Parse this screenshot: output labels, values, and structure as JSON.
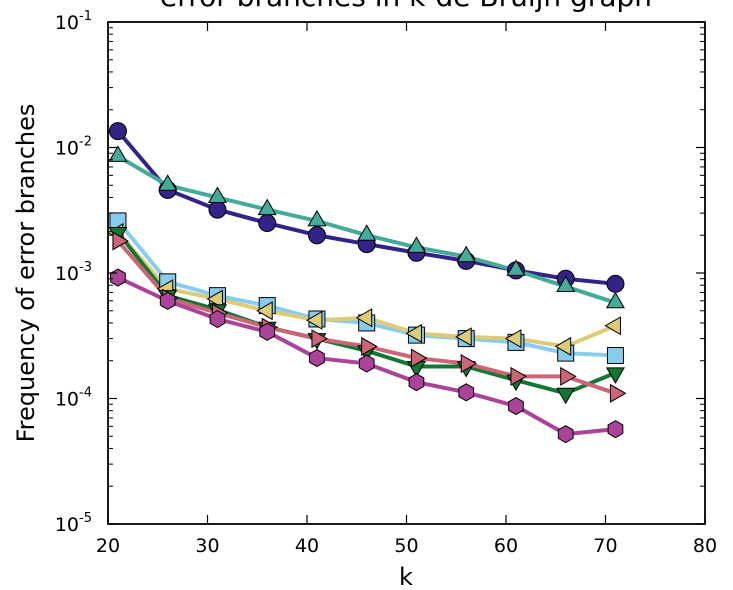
{
  "chart_data": {
    "type": "line",
    "title": "error branches in k-de Bruijn graph",
    "xlabel": "k",
    "ylabel": "Frequency of error branches",
    "xlim": [
      20,
      80
    ],
    "ylim": [
      1e-05,
      0.1
    ],
    "yscale": "log",
    "xticks": [
      "20",
      "30",
      "40",
      "50",
      "60",
      "70",
      "80"
    ],
    "yticks": [
      {
        "base": "10",
        "exp": "-5"
      },
      {
        "base": "10",
        "exp": "-4"
      },
      {
        "base": "10",
        "exp": "-3"
      },
      {
        "base": "10",
        "exp": "-2"
      },
      {
        "base": "10",
        "exp": "-1"
      }
    ],
    "grid": false,
    "legend": "none",
    "series": [
      {
        "color": "#332288",
        "marker": "circle",
        "x": [
          21,
          26,
          31,
          36,
          41,
          46,
          51,
          56,
          61,
          66,
          71
        ],
        "y": [
          0.0135,
          0.0046,
          0.0032,
          0.0025,
          0.002,
          0.0017,
          0.00145,
          0.00125,
          0.00105,
          0.0009,
          0.00082
        ]
      },
      {
        "color": "#44AA99",
        "marker": "triangle-up",
        "x": [
          21,
          26,
          31,
          36,
          41,
          46,
          51,
          56,
          61,
          66,
          71
        ],
        "y": [
          0.0085,
          0.005,
          0.004,
          0.0032,
          0.0026,
          0.002,
          0.0016,
          0.00135,
          0.00105,
          0.00078,
          0.00058
        ]
      },
      {
        "color": "#88CCEE",
        "marker": "square",
        "x": [
          21,
          26,
          31,
          36,
          41,
          46,
          51,
          56,
          61,
          66,
          71
        ],
        "y": [
          0.0026,
          0.00085,
          0.00066,
          0.00055,
          0.00043,
          0.0004,
          0.00032,
          0.0003,
          0.00028,
          0.00023,
          0.00022
        ]
      },
      {
        "color": "#DDCC77",
        "marker": "triangle-left",
        "x": [
          21,
          26,
          31,
          36,
          41,
          46,
          51,
          56,
          61,
          66,
          71
        ],
        "y": [
          0.0021,
          0.00075,
          0.00062,
          0.0005,
          0.00042,
          0.00044,
          0.00033,
          0.00031,
          0.0003,
          0.00026,
          0.00038
        ]
      },
      {
        "color": "#117733",
        "marker": "triangle-down",
        "x": [
          21,
          26,
          31,
          36,
          41,
          46,
          51,
          56,
          61,
          66,
          71
        ],
        "y": [
          0.0021,
          0.00066,
          0.00051,
          0.00037,
          0.0003,
          0.00024,
          0.00018,
          0.00018,
          0.00014,
          0.00011,
          0.00016
        ]
      },
      {
        "color": "#CC6677",
        "marker": "triangle-right",
        "x": [
          21,
          26,
          31,
          36,
          41,
          46,
          51,
          56,
          61,
          66,
          71
        ],
        "y": [
          0.0018,
          0.00063,
          0.00048,
          0.00037,
          0.0003,
          0.00026,
          0.00021,
          0.00019,
          0.00015,
          0.00015,
          0.00011
        ]
      },
      {
        "color": "#AA4499",
        "marker": "hexagon",
        "x": [
          21,
          26,
          31,
          36,
          41,
          46,
          51,
          56,
          61,
          66,
          71
        ],
        "y": [
          0.00092,
          0.0006,
          0.00043,
          0.00034,
          0.00021,
          0.00019,
          0.000135,
          0.000112,
          8.7e-05,
          5.2e-05,
          5.7e-05
        ]
      }
    ]
  }
}
